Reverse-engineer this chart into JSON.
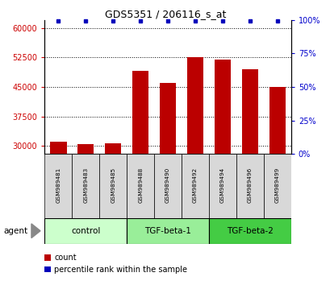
{
  "title": "GDS5351 / 206116_s_at",
  "samples": [
    "GSM989481",
    "GSM989483",
    "GSM989485",
    "GSM989488",
    "GSM989490",
    "GSM989492",
    "GSM989494",
    "GSM989496",
    "GSM989499"
  ],
  "counts": [
    31000,
    30500,
    30700,
    49000,
    46000,
    52500,
    52000,
    49500,
    45000
  ],
  "percentiles": [
    99,
    99,
    99,
    99,
    99,
    99,
    99,
    99,
    99
  ],
  "groups": [
    {
      "label": "control",
      "indices": [
        0,
        1,
        2
      ],
      "color": "#ccffcc"
    },
    {
      "label": "TGF-beta-1",
      "indices": [
        3,
        4,
        5
      ],
      "color": "#99ee99"
    },
    {
      "label": "TGF-beta-2",
      "indices": [
        6,
        7,
        8
      ],
      "color": "#44cc44"
    }
  ],
  "ylim_left": [
    28000,
    62000
  ],
  "yticks_left": [
    30000,
    37500,
    45000,
    52500,
    60000
  ],
  "ylim_right": [
    0,
    100
  ],
  "yticks_right": [
    0,
    25,
    50,
    75,
    100
  ],
  "bar_color": "#bb0000",
  "dot_color": "#0000bb",
  "bg_color": "#d8d8d8",
  "left_tick_color": "#cc0000",
  "right_tick_color": "#0000cc",
  "legend_count_color": "#bb0000",
  "legend_pct_color": "#0000bb",
  "agent_arrow_color": "#888888"
}
